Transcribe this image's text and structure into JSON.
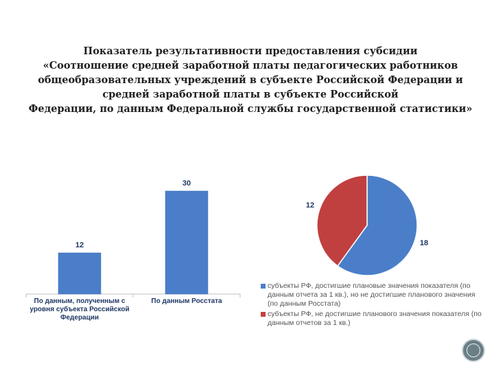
{
  "title_lines": [
    "Показатель результативности предоставления субсидии",
    "«Соотношение средней заработной платы педагогических работников",
    "общеобразовательных учреждений в субъекте Российской Федерации и",
    "средней заработной платы в субъекте Российской",
    "Федерации, по данным Федеральной службы государственной статистики»"
  ],
  "colors": {
    "blue": "#4a7ec9",
    "red": "#c0403f",
    "text": "#1f3864"
  },
  "chart_data": [
    {
      "type": "bar",
      "categories": [
        [
          "По данным, полученным с",
          "уровня субъекта Российской",
          "Федерации"
        ],
        [
          "По данным Росстата"
        ]
      ],
      "values": [
        12,
        30
      ],
      "ylim": [
        0,
        34
      ]
    },
    {
      "type": "pie",
      "slices": [
        {
          "label": "субъекты РФ, достигшие плановые значения показателя (по данным отчета за 1 кв.), но не достигшие планового значения (по данным Росстата)",
          "value": 18,
          "color": "#4a7ec9"
        },
        {
          "label": "субъекты РФ, не достигшие планового значения показателя (по данным отчетов за 1 кв.)",
          "value": 12,
          "color": "#c0403f"
        }
      ],
      "legend_position": "bottom"
    }
  ]
}
